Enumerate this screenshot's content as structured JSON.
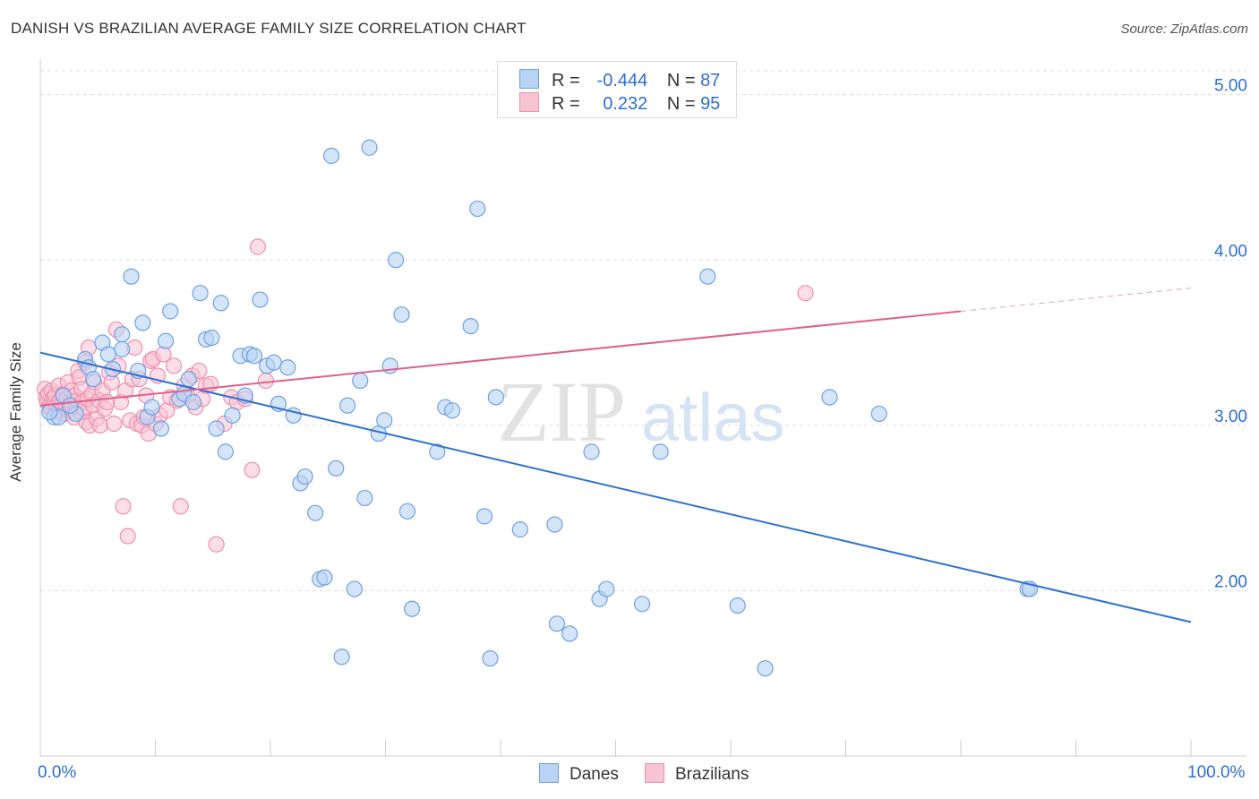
{
  "title": "DANISH VS BRAZILIAN AVERAGE FAMILY SIZE CORRELATION CHART",
  "source": "Source: ZipAtlas.com",
  "watermark": "ZIPatlas",
  "legend": {
    "danes": {
      "r_label": "R =",
      "r_value": "-0.444",
      "n_label": "N =",
      "n_value": "87"
    },
    "brazilians": {
      "r_label": "R =",
      "r_value": "0.232",
      "n_label": "N =",
      "n_value": "95"
    }
  },
  "colors": {
    "danes_fill": "#b9d3f5",
    "danes_stroke": "#6fa0e0",
    "danes_line": "#2f72d0",
    "brazilians_fill": "#f8c3d3",
    "brazilians_stroke": "#ee8fae",
    "brazilians_line": "#e0608e",
    "axis_label": "#2b6fd6",
    "grid": "#dddddd"
  },
  "chart_data": {
    "type": "scatter",
    "title": "DANISH VS BRAZILIAN AVERAGE FAMILY SIZE CORRELATION CHART",
    "xlabel": "",
    "ylabel": "Average Family Size",
    "xlim": [
      0,
      100
    ],
    "ylim": [
      1.0,
      5.15
    ],
    "x_tick_labels": [
      "0.0%",
      "100.0%"
    ],
    "y_ticks": [
      2.0,
      3.0,
      4.0,
      5.0
    ],
    "y_tick_labels": [
      "2.00",
      "3.00",
      "4.00",
      "5.00"
    ],
    "grid": true,
    "legend_position": "top-center",
    "series": [
      {
        "name": "Danes",
        "trend": {
          "x": [
            0,
            100
          ],
          "y": [
            3.44,
            1.81
          ]
        },
        "points": [
          [
            1.2,
            3.05
          ],
          [
            1.6,
            3.05
          ],
          [
            2.0,
            3.18
          ],
          [
            3.1,
            3.07
          ],
          [
            3.9,
            3.4
          ],
          [
            4.2,
            3.35
          ],
          [
            4.6,
            3.28
          ],
          [
            5.4,
            3.5
          ],
          [
            5.9,
            3.43
          ],
          [
            6.3,
            3.34
          ],
          [
            7.1,
            3.55
          ],
          [
            7.1,
            3.46
          ],
          [
            7.9,
            3.9
          ],
          [
            8.5,
            3.33
          ],
          [
            8.9,
            3.62
          ],
          [
            9.3,
            3.05
          ],
          [
            9.7,
            3.11
          ],
          [
            10.5,
            2.98
          ],
          [
            10.9,
            3.51
          ],
          [
            11.3,
            3.69
          ],
          [
            12.1,
            3.16
          ],
          [
            12.5,
            3.19
          ],
          [
            12.9,
            3.28
          ],
          [
            13.3,
            3.14
          ],
          [
            13.9,
            3.8
          ],
          [
            14.4,
            3.52
          ],
          [
            14.9,
            3.53
          ],
          [
            15.3,
            2.98
          ],
          [
            15.7,
            3.74
          ],
          [
            16.1,
            2.84
          ],
          [
            16.7,
            3.06
          ],
          [
            17.4,
            3.42
          ],
          [
            17.8,
            3.18
          ],
          [
            18.2,
            3.43
          ],
          [
            18.6,
            3.42
          ],
          [
            19.1,
            3.76
          ],
          [
            19.7,
            3.36
          ],
          [
            20.3,
            3.38
          ],
          [
            20.7,
            3.13
          ],
          [
            21.5,
            3.35
          ],
          [
            22.0,
            3.06
          ],
          [
            22.6,
            2.65
          ],
          [
            23.0,
            2.69
          ],
          [
            23.9,
            2.47
          ],
          [
            24.3,
            2.07
          ],
          [
            24.7,
            2.08
          ],
          [
            25.3,
            4.63
          ],
          [
            25.7,
            2.74
          ],
          [
            26.2,
            1.6
          ],
          [
            26.7,
            3.12
          ],
          [
            27.3,
            2.01
          ],
          [
            27.8,
            3.27
          ],
          [
            28.2,
            2.56
          ],
          [
            28.6,
            4.68
          ],
          [
            29.4,
            2.95
          ],
          [
            29.9,
            3.03
          ],
          [
            30.4,
            3.36
          ],
          [
            30.9,
            4.0
          ],
          [
            31.4,
            3.67
          ],
          [
            31.9,
            2.48
          ],
          [
            32.3,
            1.89
          ],
          [
            34.5,
            2.84
          ],
          [
            35.2,
            3.11
          ],
          [
            35.8,
            3.09
          ],
          [
            37.4,
            3.6
          ],
          [
            38.0,
            4.31
          ],
          [
            38.6,
            2.45
          ],
          [
            39.1,
            1.59
          ],
          [
            39.6,
            3.17
          ],
          [
            41.7,
            2.37
          ],
          [
            44.7,
            2.4
          ],
          [
            44.9,
            1.8
          ],
          [
            46.0,
            1.74
          ],
          [
            47.9,
            2.84
          ],
          [
            48.6,
            1.95
          ],
          [
            49.2,
            2.01
          ],
          [
            52.3,
            1.92
          ],
          [
            53.9,
            2.84
          ],
          [
            58.0,
            3.9
          ],
          [
            60.6,
            1.91
          ],
          [
            63.0,
            1.53
          ],
          [
            68.6,
            3.17
          ],
          [
            72.9,
            3.07
          ],
          [
            85.8,
            2.01
          ],
          [
            86.0,
            2.01
          ],
          [
            0.8,
            3.08
          ],
          [
            2.6,
            3.12
          ]
        ]
      },
      {
        "name": "Brazilians",
        "trend": {
          "x": [
            0,
            80
          ],
          "y": [
            3.12,
            3.69
          ]
        },
        "trend_dashed": {
          "x": [
            80,
            100
          ],
          "y": [
            3.69,
            3.83
          ]
        },
        "points": [
          [
            0.4,
            3.22
          ],
          [
            0.5,
            3.17
          ],
          [
            0.6,
            3.14
          ],
          [
            0.7,
            3.19
          ],
          [
            0.8,
            3.12
          ],
          [
            0.9,
            3.1
          ],
          [
            1.0,
            3.21
          ],
          [
            1.1,
            3.16
          ],
          [
            1.2,
            3.13
          ],
          [
            1.3,
            3.18
          ],
          [
            1.4,
            3.12
          ],
          [
            1.5,
            3.08
          ],
          [
            1.6,
            3.24
          ],
          [
            1.7,
            3.15
          ],
          [
            1.8,
            3.1
          ],
          [
            1.9,
            3.13
          ],
          [
            2.0,
            3.19
          ],
          [
            2.1,
            3.07
          ],
          [
            2.2,
            3.11
          ],
          [
            2.3,
            3.16
          ],
          [
            2.4,
            3.26
          ],
          [
            2.5,
            3.09
          ],
          [
            2.6,
            3.14
          ],
          [
            2.7,
            3.21
          ],
          [
            2.8,
            3.12
          ],
          [
            2.9,
            3.05
          ],
          [
            3.0,
            3.18
          ],
          [
            3.1,
            3.11
          ],
          [
            3.2,
            3.15
          ],
          [
            3.3,
            3.33
          ],
          [
            3.4,
            3.29
          ],
          [
            3.5,
            3.08
          ],
          [
            3.6,
            3.22
          ],
          [
            3.7,
            3.14
          ],
          [
            3.8,
            3.1
          ],
          [
            3.9,
            3.38
          ],
          [
            4.0,
            3.02
          ],
          [
            4.1,
            3.16
          ],
          [
            4.2,
            3.47
          ],
          [
            4.3,
            3.0
          ],
          [
            4.5,
            3.19
          ],
          [
            4.6,
            3.12
          ],
          [
            4.7,
            3.26
          ],
          [
            4.9,
            3.04
          ],
          [
            5.1,
            3.15
          ],
          [
            5.2,
            3.0
          ],
          [
            5.4,
            3.21
          ],
          [
            5.6,
            3.1
          ],
          [
            5.8,
            3.14
          ],
          [
            6.0,
            3.32
          ],
          [
            6.2,
            3.26
          ],
          [
            6.4,
            3.01
          ],
          [
            6.6,
            3.58
          ],
          [
            6.8,
            3.36
          ],
          [
            7.0,
            3.14
          ],
          [
            7.2,
            2.51
          ],
          [
            7.4,
            3.21
          ],
          [
            7.6,
            2.33
          ],
          [
            7.8,
            3.03
          ],
          [
            8.0,
            3.28
          ],
          [
            8.2,
            3.47
          ],
          [
            8.4,
            3.01
          ],
          [
            8.6,
            3.28
          ],
          [
            8.8,
            3.0
          ],
          [
            9.0,
            3.05
          ],
          [
            9.2,
            3.18
          ],
          [
            9.4,
            2.95
          ],
          [
            9.6,
            3.39
          ],
          [
            9.8,
            3.4
          ],
          [
            10.0,
            3.01
          ],
          [
            10.2,
            3.3
          ],
          [
            10.4,
            3.06
          ],
          [
            10.7,
            3.43
          ],
          [
            11.0,
            3.09
          ],
          [
            11.3,
            3.17
          ],
          [
            11.6,
            3.36
          ],
          [
            11.9,
            3.15
          ],
          [
            12.2,
            2.51
          ],
          [
            12.5,
            3.24
          ],
          [
            12.8,
            3.18
          ],
          [
            13.2,
            3.3
          ],
          [
            13.5,
            3.11
          ],
          [
            13.8,
            3.33
          ],
          [
            14.1,
            3.16
          ],
          [
            14.4,
            3.24
          ],
          [
            14.8,
            3.25
          ],
          [
            15.3,
            2.28
          ],
          [
            16.0,
            3.01
          ],
          [
            16.6,
            3.17
          ],
          [
            17.1,
            3.14
          ],
          [
            17.8,
            3.16
          ],
          [
            18.4,
            2.73
          ],
          [
            18.9,
            4.08
          ],
          [
            19.6,
            3.27
          ],
          [
            66.5,
            3.8
          ]
        ]
      }
    ]
  },
  "bottom_legend": {
    "danes": "Danes",
    "brazilians": "Brazilians"
  }
}
